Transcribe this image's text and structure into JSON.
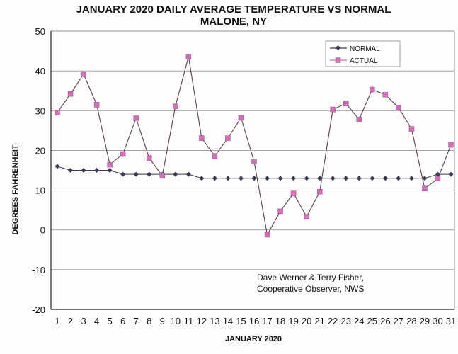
{
  "chart_data": {
    "type": "line",
    "title": "JANUARY 2020 DAILY AVERAGE TEMPERATURE VS NORMAL",
    "subtitle": "MALONE, NY",
    "xlabel": "JANUARY 2020",
    "ylabel": "DEGREES FAHRENHEIT",
    "ylim": [
      -20,
      50
    ],
    "yticks": [
      50,
      40,
      30,
      20,
      10,
      0,
      -10,
      -20
    ],
    "grid": true,
    "legend_placement": "top-right",
    "x": [
      1,
      2,
      3,
      4,
      5,
      6,
      7,
      8,
      9,
      10,
      11,
      12,
      13,
      14,
      15,
      16,
      17,
      18,
      19,
      20,
      21,
      22,
      23,
      24,
      25,
      26,
      27,
      28,
      29,
      30,
      31
    ],
    "series": [
      {
        "name": "NORMAL",
        "color": "#3a3d52",
        "marker": "diamond",
        "values": [
          16,
          15,
          15,
          15,
          15,
          14,
          14,
          14,
          14,
          14,
          14,
          13,
          13,
          13,
          13,
          13,
          13,
          13,
          13,
          13,
          13,
          13,
          13,
          13,
          13,
          13,
          13,
          13,
          13,
          14,
          14
        ]
      },
      {
        "name": "ACTUAL",
        "color": "#d070b8",
        "marker": "square",
        "values": [
          29.5,
          34.2,
          39.2,
          31.5,
          16.4,
          19.1,
          28.1,
          18.1,
          13.6,
          31.1,
          43.6,
          23.1,
          18.6,
          23.1,
          28.2,
          17.2,
          -1.2,
          4.7,
          9.2,
          3.3,
          9.6,
          30.3,
          31.8,
          27.8,
          35.3,
          34.0,
          30.8,
          25.4,
          10.4,
          12.9,
          21.4
        ]
      }
    ],
    "annotation": [
      "Dave Werner & Terry Fisher,",
      "Cooperative Observer, NWS"
    ]
  }
}
